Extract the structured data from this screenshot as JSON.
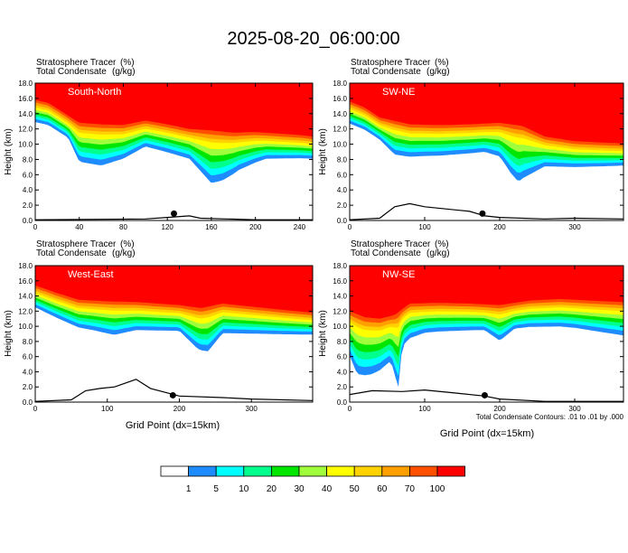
{
  "title": "2025-08-20_06:00:00",
  "field_label_1": "Stratosphere Tracer",
  "field_unit_1": "(%)",
  "field_label_2": "Total Condensate",
  "field_unit_2": "(g/kg)",
  "ylabel": "Height (km)",
  "xlabel": "Grid Point (dx=15km)",
  "contour_note": "Total Condensate Contours: .01 to .01 by .000",
  "colors": [
    "#ffffff",
    "#1e8cff",
    "#00ffff",
    "#00ff8c",
    "#00e600",
    "#a0ff3c",
    "#ffff00",
    "#ffd200",
    "#ffa000",
    "#ff5000",
    "#ff0000"
  ],
  "chart_data": [
    {
      "type": "contour",
      "panel_label": "South-North",
      "xlim": [
        0,
        252
      ],
      "xticks": [
        0,
        40,
        80,
        120,
        160,
        200,
        240
      ],
      "ylim": [
        0,
        18
      ],
      "yticks": [
        "0.0",
        "2.0",
        "4.0",
        "6.0",
        "8.0",
        "10.0",
        "12.0",
        "14.0",
        "16.0",
        "18.0"
      ],
      "tropopause_km": [
        [
          0,
          15.8
        ],
        [
          12,
          15.4
        ],
        [
          25,
          14.2
        ],
        [
          40,
          12.8
        ],
        [
          60,
          12.6
        ],
        [
          80,
          12.5
        ],
        [
          100,
          13.1
        ],
        [
          120,
          12.6
        ],
        [
          140,
          12.0
        ],
        [
          160,
          11.8
        ],
        [
          180,
          11.5
        ],
        [
          200,
          11.6
        ],
        [
          220,
          11.4
        ],
        [
          240,
          11.2
        ],
        [
          252,
          11.0
        ]
      ],
      "fold_depth_km": [
        [
          0,
          0
        ],
        [
          30,
          0
        ],
        [
          40,
          2.2
        ],
        [
          60,
          2.5
        ],
        [
          80,
          1.5
        ],
        [
          100,
          0.5
        ],
        [
          140,
          1.0
        ],
        [
          150,
          2.5
        ],
        [
          160,
          4.0
        ],
        [
          170,
          3.5
        ],
        [
          185,
          2.0
        ],
        [
          210,
          0.5
        ],
        [
          252,
          0
        ]
      ],
      "terrain_km": [
        [
          0,
          0.1
        ],
        [
          100,
          0.2
        ],
        [
          120,
          0.4
        ],
        [
          140,
          0.6
        ],
        [
          150,
          0.3
        ],
        [
          200,
          0.1
        ],
        [
          252,
          0.1
        ]
      ],
      "marker": [
        126,
        0.9
      ]
    },
    {
      "type": "contour",
      "panel_label": "SW-NE",
      "xlim": [
        0,
        365
      ],
      "xticks": [
        0,
        100,
        200,
        300
      ],
      "ylim": [
        0,
        18
      ],
      "yticks": [
        "0.0",
        "2.0",
        "4.0",
        "6.0",
        "8.0",
        "10.0",
        "12.0",
        "14.0",
        "16.0",
        "18.0"
      ],
      "tropopause_km": [
        [
          0,
          15.6
        ],
        [
          20,
          14.8
        ],
        [
          40,
          13.5
        ],
        [
          80,
          12.6
        ],
        [
          120,
          12.5
        ],
        [
          160,
          12.6
        ],
        [
          200,
          12.8
        ],
        [
          230,
          12.4
        ],
        [
          260,
          11.0
        ],
        [
          300,
          10.4
        ],
        [
          340,
          10.2
        ],
        [
          365,
          10.1
        ]
      ],
      "fold_depth_km": [
        [
          0,
          0
        ],
        [
          40,
          0
        ],
        [
          60,
          1.5
        ],
        [
          100,
          1.2
        ],
        [
          180,
          0.8
        ],
        [
          200,
          1.5
        ],
        [
          215,
          3.5
        ],
        [
          225,
          4.5
        ],
        [
          240,
          3.0
        ],
        [
          260,
          1.0
        ],
        [
          300,
          0.5
        ],
        [
          365,
          0
        ]
      ],
      "terrain_km": [
        [
          0,
          0.1
        ],
        [
          40,
          0.3
        ],
        [
          60,
          1.8
        ],
        [
          80,
          2.2
        ],
        [
          100,
          1.8
        ],
        [
          160,
          1.2
        ],
        [
          180,
          0.6
        ],
        [
          200,
          0.4
        ],
        [
          260,
          0.2
        ],
        [
          300,
          0.3
        ],
        [
          365,
          0.2
        ]
      ],
      "marker": [
        177,
        0.9
      ]
    },
    {
      "type": "contour",
      "panel_label": "West-East",
      "xlim": [
        0,
        385
      ],
      "xticks": [
        0,
        100,
        200,
        300
      ],
      "ylim": [
        0,
        18
      ],
      "yticks": [
        "0.0",
        "2.0",
        "4.0",
        "6.0",
        "8.0",
        "10.0",
        "12.0",
        "14.0",
        "16.0",
        "18.0"
      ],
      "tropopause_km": [
        [
          0,
          15.4
        ],
        [
          30,
          14.4
        ],
        [
          60,
          13.5
        ],
        [
          100,
          13.3
        ],
        [
          140,
          13.2
        ],
        [
          200,
          12.8
        ],
        [
          230,
          12.4
        ],
        [
          260,
          13.0
        ],
        [
          300,
          12.6
        ],
        [
          340,
          12.2
        ],
        [
          385,
          11.8
        ]
      ],
      "fold_depth_km": [
        [
          0,
          0
        ],
        [
          80,
          1.0
        ],
        [
          110,
          1.5
        ],
        [
          140,
          0.8
        ],
        [
          200,
          0.5
        ],
        [
          225,
          2.5
        ],
        [
          240,
          3.0
        ],
        [
          260,
          1.0
        ],
        [
          320,
          0.5
        ],
        [
          385,
          0
        ]
      ],
      "terrain_km": [
        [
          0,
          0.1
        ],
        [
          50,
          0.3
        ],
        [
          70,
          1.5
        ],
        [
          90,
          1.8
        ],
        [
          110,
          2.0
        ],
        [
          140,
          3.0
        ],
        [
          160,
          1.8
        ],
        [
          200,
          0.8
        ],
        [
          260,
          0.6
        ],
        [
          300,
          0.4
        ],
        [
          385,
          0.2
        ]
      ],
      "marker": [
        191,
        0.9
      ]
    },
    {
      "type": "contour",
      "panel_label": "NW-SE",
      "xlim": [
        0,
        365
      ],
      "xticks": [
        0,
        100,
        200,
        300
      ],
      "ylim": [
        0,
        18
      ],
      "yticks": [
        "0.0",
        "2.0",
        "4.0",
        "6.0",
        "8.0",
        "10.0",
        "12.0",
        "14.0",
        "16.0",
        "18.0"
      ],
      "tropopause_km": [
        [
          0,
          12.0
        ],
        [
          20,
          11.2
        ],
        [
          40,
          11.0
        ],
        [
          60,
          11.5
        ],
        [
          80,
          13.0
        ],
        [
          120,
          13.1
        ],
        [
          160,
          13.0
        ],
        [
          200,
          12.8
        ],
        [
          240,
          13.4
        ],
        [
          280,
          13.6
        ],
        [
          320,
          13.4
        ],
        [
          365,
          13.2
        ]
      ],
      "fold_depth_km": [
        [
          0,
          3.0
        ],
        [
          10,
          5.0
        ],
        [
          30,
          4.5
        ],
        [
          55,
          3.0
        ],
        [
          65,
          7.0
        ],
        [
          70,
          2.0
        ],
        [
          100,
          1.0
        ],
        [
          180,
          0.5
        ],
        [
          200,
          1.8
        ],
        [
          220,
          0.5
        ],
        [
          300,
          0.8
        ],
        [
          365,
          1.5
        ]
      ],
      "terrain_km": [
        [
          0,
          1.0
        ],
        [
          30,
          1.5
        ],
        [
          70,
          1.4
        ],
        [
          100,
          1.6
        ],
        [
          140,
          1.2
        ],
        [
          180,
          0.8
        ],
        [
          200,
          0.4
        ],
        [
          260,
          0.1
        ],
        [
          365,
          0.1
        ]
      ],
      "marker": [
        180,
        0.9
      ]
    }
  ],
  "colorbar": {
    "labels": [
      "1",
      "5",
      "10",
      "20",
      "30",
      "40",
      "50",
      "60",
      "70",
      "100"
    ]
  }
}
